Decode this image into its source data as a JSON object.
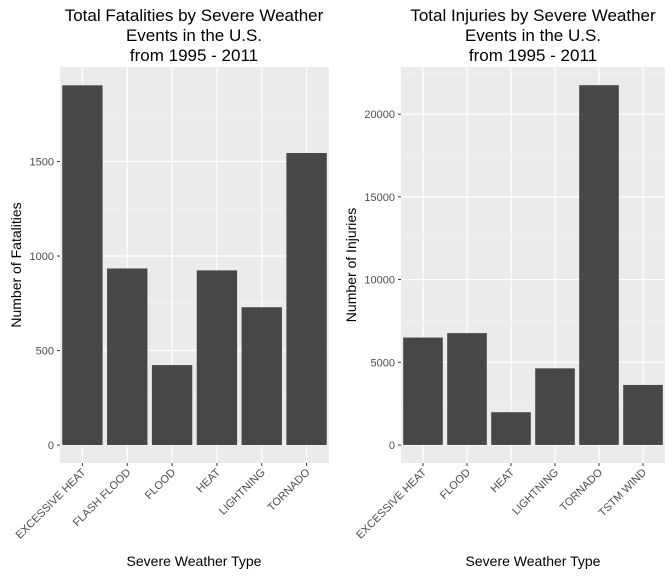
{
  "chart_data": [
    {
      "type": "bar",
      "title": [
        "Total Fatalities by Severe Weather",
        "Events in the U.S.",
        "from 1995 - 2011"
      ],
      "xlabel": "Severe Weather Type",
      "ylabel": "Number of Fatalities",
      "categories": [
        "EXCESSIVE HEAT",
        "FLASH FLOOD",
        "FLOOD",
        "HEAT",
        "LIGHTNING",
        "TORNADO"
      ],
      "values": [
        1903,
        934,
        423,
        924,
        729,
        1545
      ],
      "ylim": [
        -95,
        2000
      ],
      "yticks": [
        0,
        500,
        1000,
        1500
      ],
      "ytick_labels": [
        "0",
        "500",
        "1000",
        "1500"
      ],
      "grid": true,
      "bar_color": "#474747",
      "panel_color": "#ebebeb"
    },
    {
      "type": "bar",
      "title": [
        "Total Injuries by Severe Weather",
        "Events in the U.S.",
        "from 1995 - 2011"
      ],
      "xlabel": "Severe Weather Type",
      "ylabel": "Number of Injuries",
      "categories": [
        "EXCESSIVE HEAT",
        "FLOOD",
        "HEAT",
        "LIGHTNING",
        "TORNADO",
        "TSTM WIND"
      ],
      "values": [
        6494,
        6760,
        1980,
        4633,
        21751,
        3629
      ],
      "ylim": [
        -1090,
        22850
      ],
      "yticks": [
        0,
        5000,
        10000,
        15000,
        20000
      ],
      "ytick_labels": [
        "0",
        "5000",
        "10000",
        "15000",
        "20000"
      ],
      "grid": true,
      "bar_color": "#474747",
      "panel_color": "#ebebeb"
    }
  ]
}
